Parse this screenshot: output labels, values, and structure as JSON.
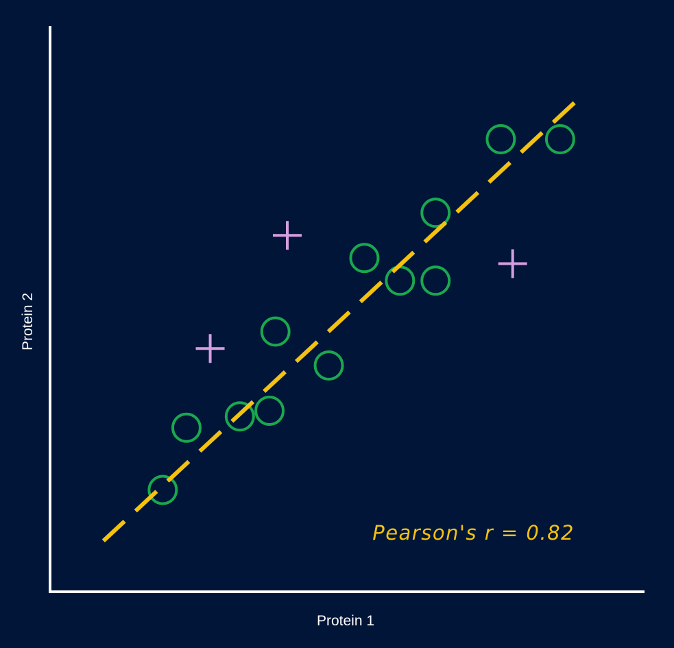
{
  "colors": {
    "background": "#001538",
    "axis": "#ffffff",
    "circle": "#1aa84e",
    "cross": "#d59ee0",
    "trend": "#f4c20f",
    "text": "#ffffff"
  },
  "chart_data": {
    "type": "scatter",
    "title": "",
    "xlabel": "Protein 1",
    "ylabel": "Protein 2",
    "xlim": [
      0,
      100
    ],
    "ylim": [
      0,
      100
    ],
    "grid": false,
    "ticks": false,
    "annotation": "Pearson's r = 0.82",
    "annotation_position": "bottom-right",
    "series": [
      {
        "marker": "circle",
        "points": [
          [
            19,
            18
          ],
          [
            23,
            29
          ],
          [
            32,
            31
          ],
          [
            37,
            32
          ],
          [
            38,
            46
          ],
          [
            47,
            40
          ],
          [
            53,
            59
          ],
          [
            59,
            55
          ],
          [
            65,
            55
          ],
          [
            65,
            67
          ],
          [
            76,
            80
          ],
          [
            86,
            80
          ]
        ]
      },
      {
        "marker": "cross",
        "points": [
          [
            27,
            43
          ],
          [
            40,
            63
          ],
          [
            78,
            58
          ]
        ]
      }
    ],
    "trendline": {
      "style": "dashed",
      "from": [
        9,
        9
      ],
      "to": [
        90,
        88
      ]
    }
  }
}
